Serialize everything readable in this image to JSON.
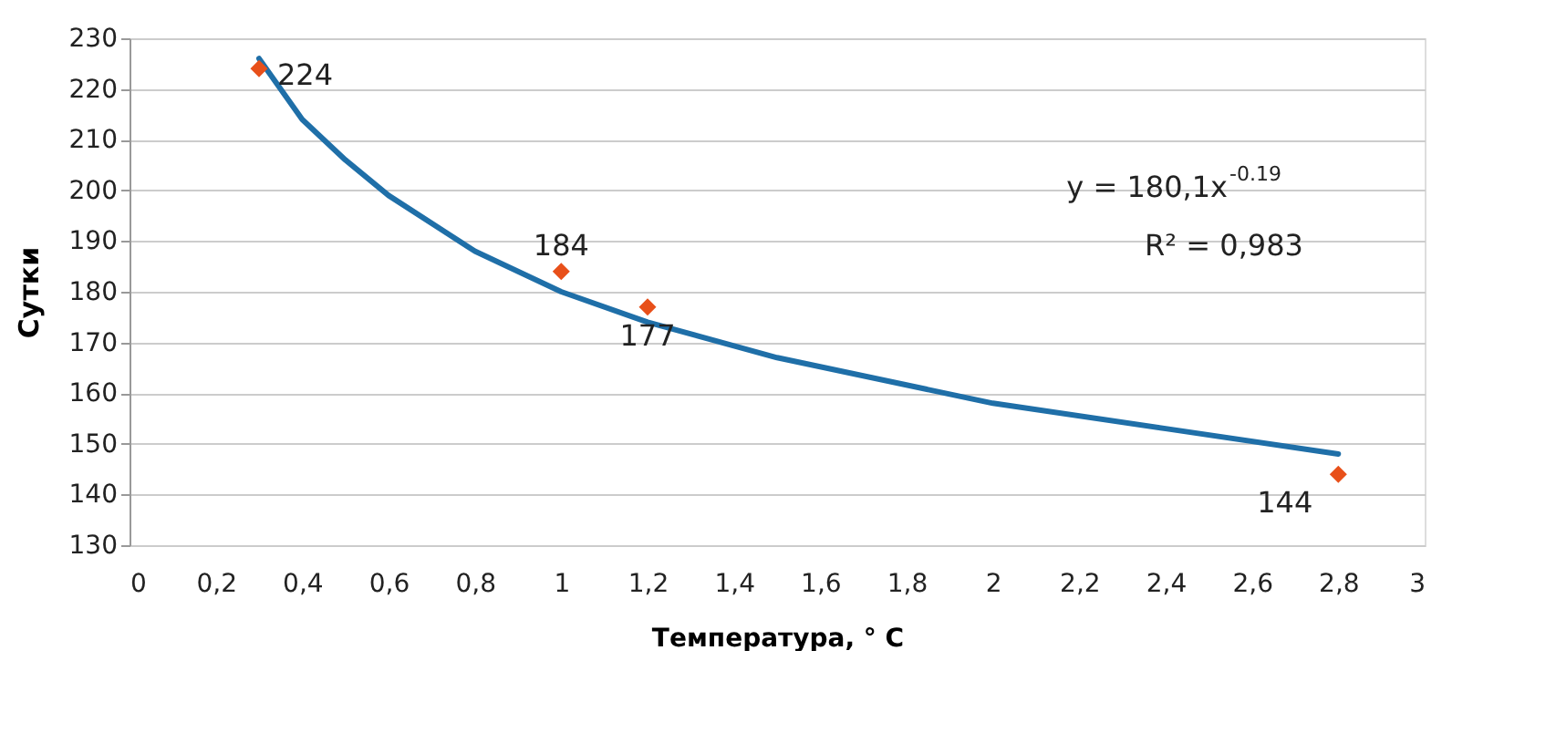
{
  "chart_data": {
    "type": "scatter",
    "xlabel": "Температура, ° C",
    "ylabel": "Сутки",
    "xlim": [
      0,
      3
    ],
    "xticks": [
      0,
      {
        "value": 0.2,
        "label": "0,2"
      },
      {
        "value": 0.4,
        "label": "0,4"
      },
      {
        "value": 0.6,
        "label": "0,6"
      },
      {
        "value": 0.8,
        "label": "0,8"
      },
      1,
      {
        "value": 1.2,
        "label": "1,2"
      },
      {
        "value": 1.4,
        "label": "1,4"
      },
      {
        "value": 1.6,
        "label": "1,6"
      },
      {
        "value": 1.8,
        "label": "1,8"
      },
      2,
      {
        "value": 2.2,
        "label": "2,2"
      },
      {
        "value": 2.4,
        "label": "2,4"
      },
      {
        "value": 2.6,
        "label": "2,6"
      },
      {
        "value": 2.8,
        "label": "2,8"
      },
      3
    ],
    "ylim": [
      130,
      230
    ],
    "yticks": [
      130,
      140,
      150,
      160,
      170,
      180,
      190,
      200,
      210,
      220,
      230
    ],
    "grid": "y",
    "annotations": [
      "y = 180,1x$^{-0.19}$",
      "R² = 0,983"
    ],
    "series": [
      {
        "type": "line",
        "color": "#1f6fa8",
        "marker": "none",
        "line_style": "solid",
        "x": [
          0.3,
          0.4,
          0.5,
          0.6,
          0.8,
          1,
          1.2,
          1.5,
          2,
          2.4,
          2.8
        ],
        "values": [
          226,
          214,
          206,
          199,
          188,
          180,
          174,
          167,
          158,
          153,
          148
        ]
      },
      {
        "type": "scatter",
        "color": "#e8501a",
        "marker": "diamond",
        "x": [
          0.3,
          1,
          1.2,
          2.8
        ],
        "values": [
          224,
          184,
          177,
          144
        ],
        "value_labels": [
          "224",
          "184",
          "177",
          "144"
        ]
      }
    ]
  }
}
